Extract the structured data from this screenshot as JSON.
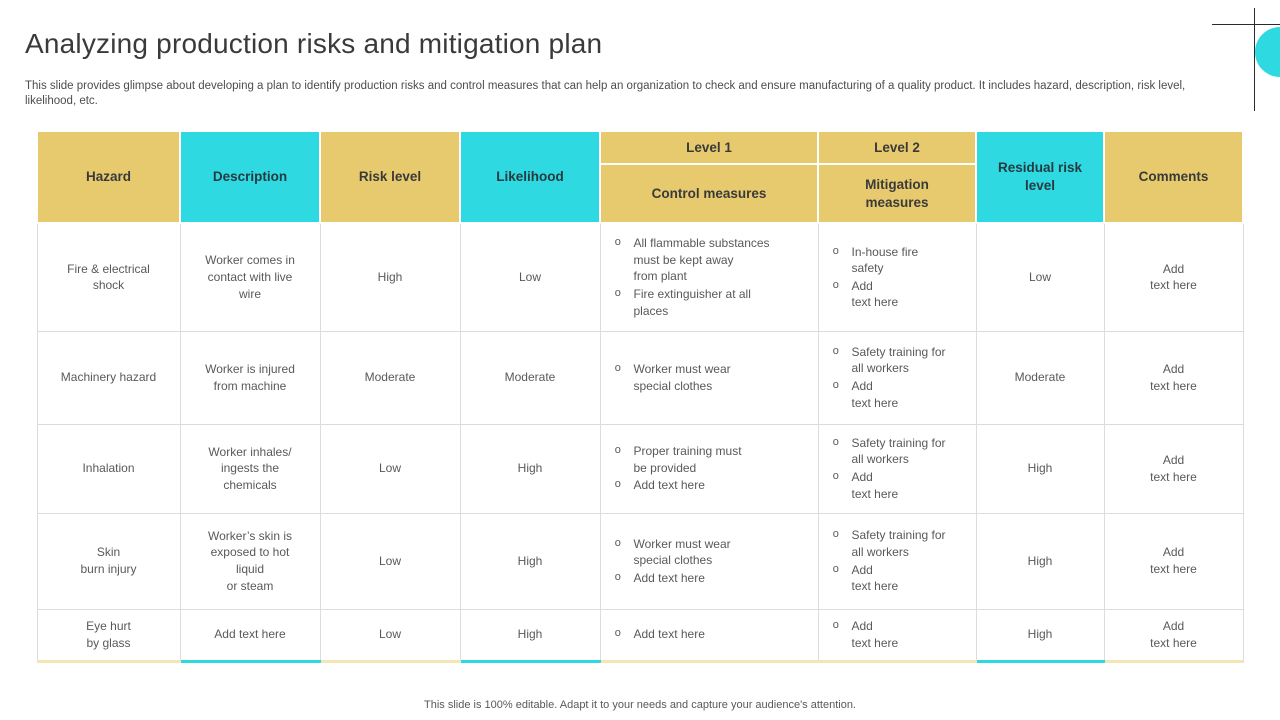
{
  "theme": {
    "yellow": "#E7CA6E",
    "cyan": "#2ED9E2",
    "pale_yellow": "#F4E6B4",
    "border_gray": "#DCDCDC",
    "text_dark": "#3A3A3A",
    "text_gray": "#595959"
  },
  "slide": {
    "title": "Analyzing production risks and mitigation plan",
    "subtitle": "This slide provides glimpse about developing a plan to identify production risks and control measures that can help an organization to check and ensure manufacturing of a quality product. It includes hazard, description, risk level, likelihood, etc.",
    "footer": "This slide is 100% editable. Adapt it to your needs and capture your audience's attention."
  },
  "table": {
    "bullet_glyph": "o",
    "headers": {
      "hazard": "Hazard",
      "description": "Description",
      "risk_level": "Risk level",
      "likelihood": "Likelihood",
      "level1": "Level 1",
      "level1_sub": "Control measures",
      "level2": "Level 2",
      "level2_sub": "Mitigation\nmeasures",
      "residual": "Residual risk\nlevel",
      "comments": "Comments"
    },
    "rows": [
      {
        "hazard": "Fire & electrical\nshock",
        "description": "Worker comes in\ncontact with live\nwire",
        "risk_level": "High",
        "likelihood": "Low",
        "control_measures": [
          "All flammable substances\nmust be kept away\nfrom plant",
          "Fire extinguisher at all\nplaces"
        ],
        "mitigation_measures": [
          "In-house fire\nsafety",
          "Add\ntext here"
        ],
        "residual": "Low",
        "comments": "Add\ntext here"
      },
      {
        "hazard": "Machinery hazard",
        "description": "Worker is injured\nfrom machine",
        "risk_level": "Moderate",
        "likelihood": "Moderate",
        "control_measures": [
          "Worker must wear\nspecial clothes"
        ],
        "mitigation_measures": [
          "Safety training for\nall workers",
          "Add\ntext here"
        ],
        "residual": "Moderate",
        "comments": "Add\ntext here"
      },
      {
        "hazard": "Inhalation",
        "description": "Worker inhales/\ningests the\nchemicals",
        "risk_level": "Low",
        "likelihood": "High",
        "control_measures": [
          "Proper training must\nbe provided",
          "Add text here"
        ],
        "mitigation_measures": [
          "Safety training for\nall workers",
          "Add\ntext here"
        ],
        "residual": "High",
        "comments": "Add\ntext here"
      },
      {
        "hazard": "Skin\nburn injury",
        "description": "Worker’s skin is\nexposed to hot\nliquid\nor steam",
        "risk_level": "Low",
        "likelihood": "High",
        "control_measures": [
          "Worker must wear\nspecial clothes",
          "Add text here"
        ],
        "mitigation_measures": [
          "Safety training for\nall workers",
          "Add\ntext here"
        ],
        "residual": "High",
        "comments": "Add\ntext here"
      },
      {
        "hazard": "Eye hurt\nby glass",
        "description": "Add text here",
        "risk_level": "Low",
        "likelihood": "High",
        "control_measures": [
          "Add text here"
        ],
        "mitigation_measures": [
          "Add\ntext here"
        ],
        "residual": "High",
        "comments": "Add\ntext here"
      }
    ]
  }
}
